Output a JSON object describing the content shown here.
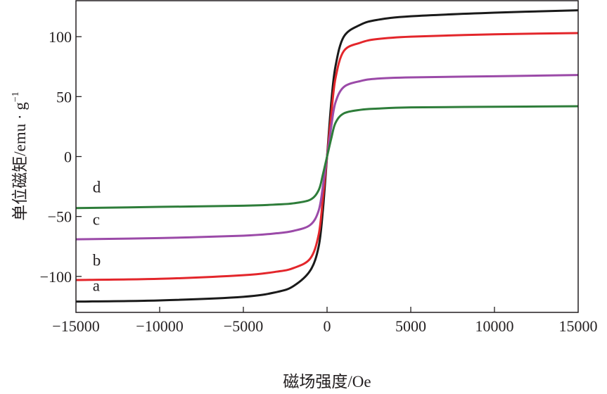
{
  "chart_data": {
    "type": "line",
    "title": "",
    "xlabel": "磁场强度/Oe",
    "ylabel": "单位磁矩/emu · g",
    "ylabel_superscript": "−1",
    "xlim": [
      -15000,
      15000
    ],
    "ylim": [
      -130,
      130
    ],
    "xticks": [
      -15000,
      -10000,
      -5000,
      0,
      5000,
      10000,
      15000
    ],
    "xtick_labels": [
      "−15000",
      "−10000",
      "−5000",
      "0",
      "5000",
      "10000",
      "15000"
    ],
    "yticks": [
      -100,
      -50,
      0,
      50,
      100
    ],
    "ytick_labels": [
      "−100",
      "−50",
      "0",
      "50",
      "100"
    ],
    "grid": false,
    "x": [
      -15000,
      -10000,
      -5000,
      -3000,
      -2000,
      -1000,
      -500,
      -250,
      0,
      250,
      500,
      1000,
      2000,
      3000,
      5000,
      10000,
      15000
    ],
    "series": [
      {
        "name": "a",
        "color": "#1a1a1a",
        "values": [
          -121,
          -120,
          -117,
          -113,
          -108,
          -95,
          -75,
          -45,
          0,
          45,
          75,
          100,
          110,
          114,
          117,
          120,
          122
        ],
        "label_pos": [
          -14000,
          -112
        ]
      },
      {
        "name": "b",
        "color": "#e3262b",
        "values": [
          -103,
          -102,
          -99,
          -96,
          -93,
          -85,
          -65,
          -35,
          0,
          35,
          65,
          88,
          95,
          98,
          100,
          102,
          103
        ],
        "label_pos": [
          -14000,
          -91
        ]
      },
      {
        "name": "c",
        "color": "#9b4aa8",
        "values": [
          -69,
          -68,
          -66,
          -64,
          -62,
          -57,
          -45,
          -25,
          0,
          25,
          45,
          58,
          63,
          65,
          66,
          67,
          68
        ],
        "label_pos": [
          -14000,
          -57
        ]
      },
      {
        "name": "d",
        "color": "#2e7d3a",
        "values": [
          -43,
          -42,
          -41,
          -40,
          -39,
          -36,
          -28,
          -15,
          0,
          15,
          28,
          36,
          39,
          40,
          41,
          41.5,
          42
        ],
        "label_pos": [
          -14000,
          -30
        ]
      }
    ]
  }
}
